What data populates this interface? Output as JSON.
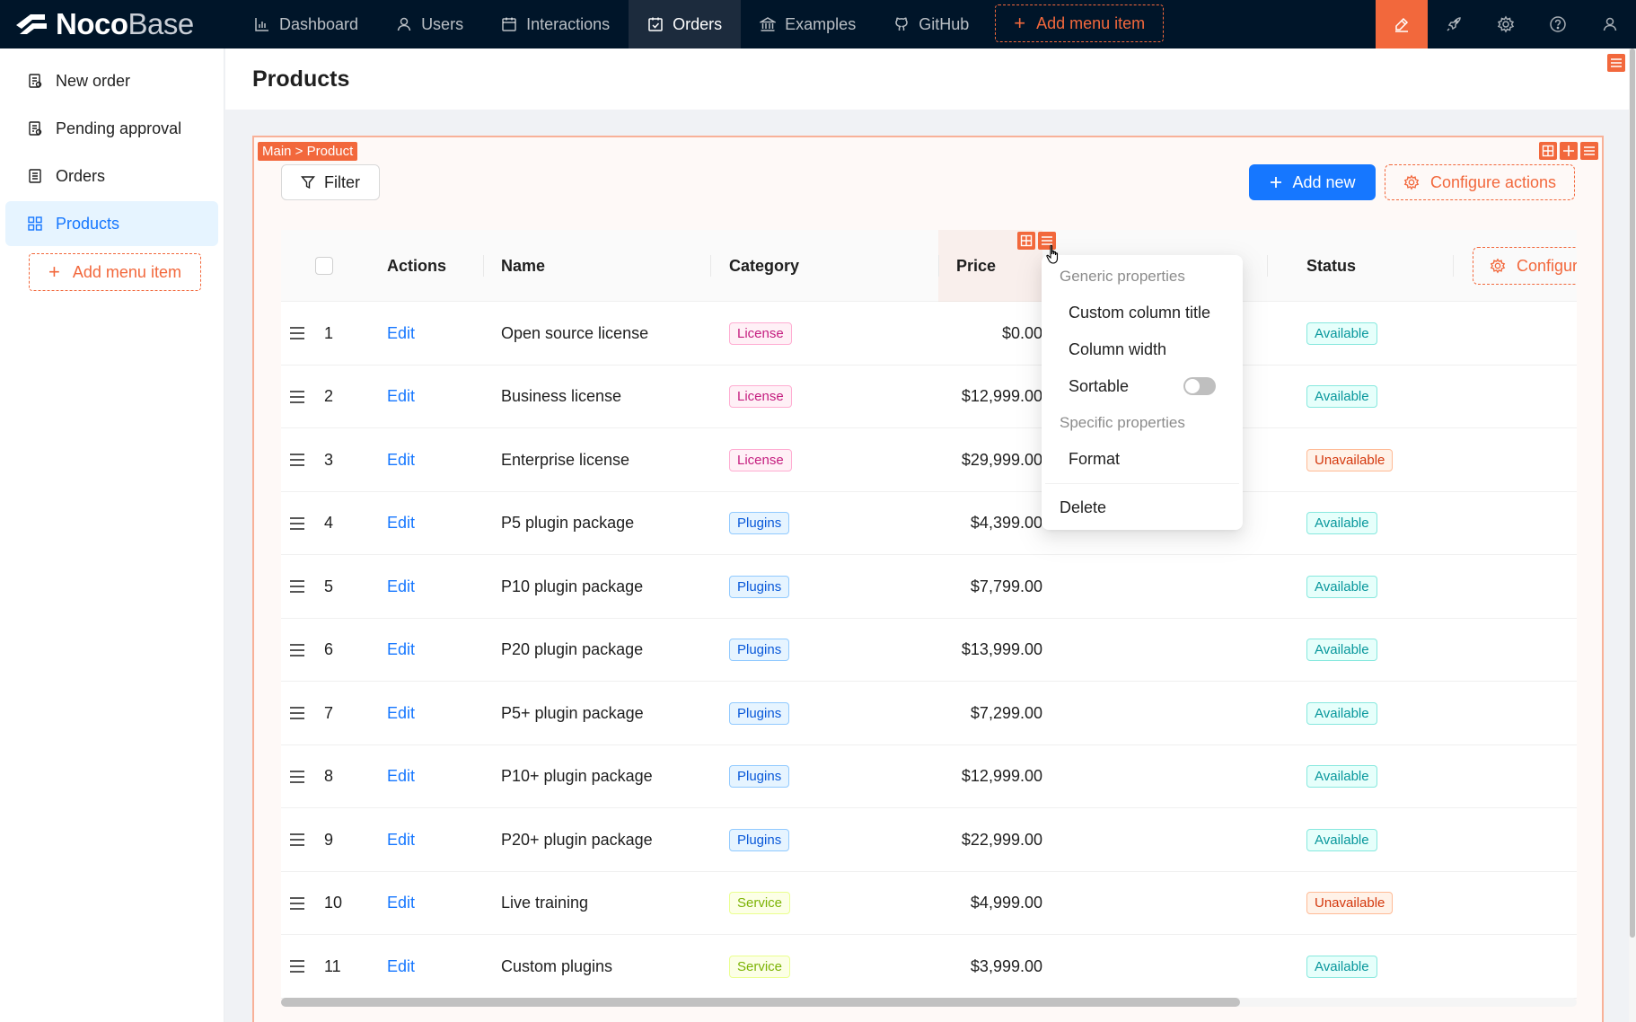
{
  "app": {
    "logo_primary": "Noco",
    "logo_secondary": "Base"
  },
  "topnav": {
    "items": [
      {
        "label": "Dashboard",
        "icon": "bar-chart-icon"
      },
      {
        "label": "Users",
        "icon": "user-icon"
      },
      {
        "label": "Interactions",
        "icon": "calendar-icon"
      },
      {
        "label": "Orders",
        "icon": "calendar-check-icon",
        "active": true
      },
      {
        "label": "Examples",
        "icon": "bank-icon"
      },
      {
        "label": "GitHub",
        "icon": "github-icon"
      }
    ],
    "add_menu_label": "Add menu item",
    "right_icons": [
      "highlight-icon",
      "rocket-icon",
      "gear-icon",
      "help-icon",
      "user-icon"
    ]
  },
  "sidebar": {
    "items": [
      {
        "label": "New order",
        "icon": "form-icon"
      },
      {
        "label": "Pending approval",
        "icon": "form-icon"
      },
      {
        "label": "Orders",
        "icon": "table-icon"
      },
      {
        "label": "Products",
        "icon": "grid-icon",
        "active": true
      }
    ],
    "add_menu_label": "Add menu item"
  },
  "page": {
    "title": "Products"
  },
  "block": {
    "breadcrumb": "Main > Product",
    "filter_label": "Filter",
    "add_new_label": "Add new",
    "configure_actions_label": "Configure actions"
  },
  "table": {
    "columns": {
      "actions": "Actions",
      "name": "Name",
      "category": "Category",
      "price": "Price",
      "status": "Status",
      "configure": "Configure columns"
    },
    "rows": [
      {
        "no": "1",
        "action": "Edit",
        "name": "Open source license",
        "category": "License",
        "price": "$0.00",
        "status": "Available"
      },
      {
        "no": "2",
        "action": "Edit",
        "name": "Business license",
        "category": "License",
        "price": "$12,999.00",
        "status": "Available"
      },
      {
        "no": "3",
        "action": "Edit",
        "name": "Enterprise license",
        "category": "License",
        "price": "$29,999.00",
        "status": "Unavailable"
      },
      {
        "no": "4",
        "action": "Edit",
        "name": "P5 plugin package",
        "category": "Plugins",
        "price": "$4,399.00",
        "status": "Available"
      },
      {
        "no": "5",
        "action": "Edit",
        "name": "P10 plugin package",
        "category": "Plugins",
        "price": "$7,799.00",
        "status": "Available"
      },
      {
        "no": "6",
        "action": "Edit",
        "name": "P20 plugin package",
        "category": "Plugins",
        "price": "$13,999.00",
        "status": "Available"
      },
      {
        "no": "7",
        "action": "Edit",
        "name": "P5+ plugin package",
        "category": "Plugins",
        "price": "$7,299.00",
        "status": "Available"
      },
      {
        "no": "8",
        "action": "Edit",
        "name": "P10+ plugin package",
        "category": "Plugins",
        "price": "$12,999.00",
        "status": "Available"
      },
      {
        "no": "9",
        "action": "Edit",
        "name": "P20+ plugin package",
        "category": "Plugins",
        "price": "$22,999.00",
        "status": "Available"
      },
      {
        "no": "10",
        "action": "Edit",
        "name": "Live training",
        "category": "Service",
        "price": "$4,999.00",
        "status": "Unavailable"
      },
      {
        "no": "11",
        "action": "Edit",
        "name": "Custom plugins",
        "category": "Service",
        "price": "$3,999.00",
        "status": "Available"
      }
    ],
    "horizontal_scroll_fraction": 0.74
  },
  "column_menu": {
    "generic_header": "Generic properties",
    "custom_title": "Custom column title",
    "column_width": "Column width",
    "sortable": "Sortable",
    "sortable_on": false,
    "specific_header": "Specific properties",
    "format": "Format",
    "delete": "Delete"
  },
  "colors": {
    "accent": "#f2683c",
    "primary": "#1677ff",
    "nav_bg": "#001529"
  }
}
